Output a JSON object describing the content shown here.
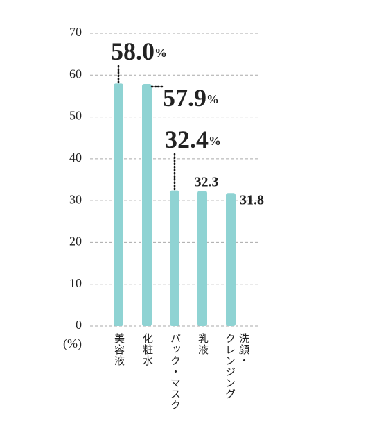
{
  "chart_data": {
    "type": "bar",
    "y_label": "(%)",
    "categories": [
      "美容液",
      "化粧水",
      "パック・マスク",
      "乳液",
      [
        "洗顔・",
        "クレンジング"
      ]
    ],
    "values": [
      58.0,
      57.9,
      32.4,
      32.3,
      31.8
    ],
    "value_labels": [
      "58.0%",
      "57.9%",
      "32.4%",
      "32.3",
      "31.8"
    ],
    "color": "#8fd3d3",
    "ylim": [
      0,
      70
    ],
    "yticks": [
      0,
      10,
      20,
      30,
      40,
      50,
      60,
      70
    ],
    "grid": true
  }
}
